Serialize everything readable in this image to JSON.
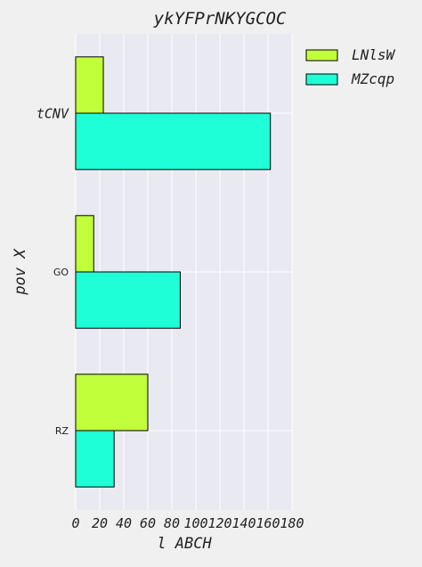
{
  "chart_data": {
    "type": "bar",
    "orientation": "horizontal",
    "title": "ykYFPrNKYGCOC",
    "xlabel": "l ABCH",
    "ylabel": "pov X",
    "categories": [
      "RZ",
      "GO",
      "tCNV"
    ],
    "series": [
      {
        "name": "LNlsW",
        "values": [
          60,
          15,
          23
        ],
        "color": "#c0ff3a"
      },
      {
        "name": "MZcqp",
        "values": [
          32,
          87,
          162
        ],
        "color": "#1effd8"
      }
    ],
    "xlim": [
      0,
      180
    ],
    "xticks": [
      "0",
      "20",
      "40",
      "60",
      "80",
      "100",
      "120",
      "140",
      "160",
      "180"
    ],
    "grid": true,
    "legend_position": "outside-top-right",
    "colors": {
      "plot_background": "#e9e9f1",
      "figure_background": "#f0f0f0",
      "grid": "#ffffff",
      "bar_edge": "#000000"
    }
  }
}
